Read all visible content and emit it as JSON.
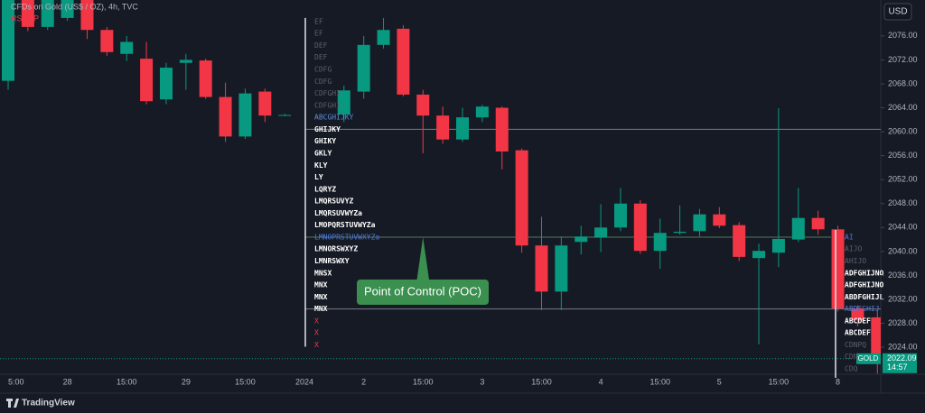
{
  "chart_data": {
    "type": "candlestick",
    "title": "CFDs on Gold (US$ / OZ), 4h, TVC",
    "subtitle": "RS: MP",
    "currency": "USD",
    "brand": "TradingView",
    "up_color": "#089981",
    "down_color": "#f23645",
    "categories": [
      "5:00",
      null,
      null,
      "28",
      null,
      null,
      "15:00",
      null,
      null,
      "29",
      null,
      null,
      "15:00",
      null,
      null,
      "2024",
      null,
      null,
      "2",
      null,
      null,
      "15:00",
      null,
      null,
      "3",
      null,
      null,
      "15:00",
      null,
      null,
      "4",
      null,
      null,
      "15:00",
      null,
      null,
      "5",
      null,
      null,
      "15:00",
      null,
      null,
      "8",
      null,
      null
    ],
    "open": [
      2068.5,
      2082,
      2077.5,
      2079,
      2082,
      2077,
      2073,
      2072.2,
      2065.4,
      2071.5,
      2071.9,
      2065.8,
      2059.2,
      2066.7,
      2062.8,
      null,
      null,
      2062.9,
      2066.7,
      2074.5,
      2077.2,
      2066.2,
      2062.7,
      2058.7,
      2062.4,
      2064,
      2056.9,
      2041,
      2033.3,
      2041.6,
      2042.3,
      2044,
      2048,
      2040.1,
      2043.1,
      2043.4,
      2046.2,
      2044.4,
      2038.9,
      2039.8,
      2042,
      2045.6,
      2043.7,
      2030.5,
      2029
    ],
    "high": [
      2082,
      2082,
      2082,
      2082,
      2082,
      2077.5,
      2076,
      2075,
      2071.5,
      2073,
      2072.2,
      2068.2,
      2067.2,
      2067.2,
      2063,
      null,
      null,
      2067.7,
      2076,
      2079,
      2077.8,
      2067,
      2064.2,
      2064,
      2064.5,
      2064.2,
      2057.2,
      2045.8,
      2042.5,
      2044.3,
      2047.9,
      2050.6,
      2048.6,
      2045.5,
      2047.7,
      2047.1,
      2047.4,
      2044.9,
      2041.3,
      2063.9,
      2050.6,
      2046.8,
      2044.3,
      2031,
      2030.2
    ],
    "low": [
      2067,
      2076.8,
      2077,
      2078.5,
      2075.5,
      2072.7,
      2071.8,
      2064.6,
      2064.6,
      2067,
      2065.5,
      2058.3,
      2058.8,
      2061.6,
      2062.6,
      null,
      null,
      2061.6,
      2065.5,
      2073.9,
      2065.9,
      2056.4,
      2058,
      2058.3,
      2061.6,
      2053.7,
      2039.8,
      2030.2,
      2030.2,
      2039.5,
      2039.9,
      2043.4,
      2039.6,
      2037.1,
      2042.8,
      2042.5,
      2043.9,
      2038.4,
      2024.5,
      2037.4,
      2041.6,
      2042.8,
      2030,
      2027.5,
      2019.6
    ],
    "close": [
      2082,
      2077.5,
      2082,
      2082,
      2077,
      2073.3,
      2075,
      2065.1,
      2070.7,
      2072,
      2065.8,
      2059.2,
      2066.4,
      2062.7,
      2062.8,
      null,
      null,
      2066.9,
      2074.5,
      2077,
      2066.2,
      2062.7,
      2058.7,
      2062.4,
      2064.2,
      2056.7,
      2041,
      2033.3,
      2041,
      2042.5,
      2044,
      2048,
      2040.1,
      2043.1,
      2043.3,
      2046.2,
      2044.3,
      2039.1,
      2040.1,
      2042.1,
      2045.6,
      2043.7,
      2030.5,
      2028.5,
      2022.09
    ],
    "ylim": [
      2019.5,
      2082
    ],
    "yticks": [
      {
        "value": 2024,
        "label": "2024.00"
      },
      {
        "value": 2028,
        "label": "2028.00"
      },
      {
        "value": 2032,
        "label": "2032.00"
      },
      {
        "value": 2036,
        "label": "2036.00"
      },
      {
        "value": 2040,
        "label": "2040.00"
      },
      {
        "value": 2044,
        "label": "2044.00"
      },
      {
        "value": 2048,
        "label": "2048.00"
      },
      {
        "value": 2052,
        "label": "2052.00"
      },
      {
        "value": 2056,
        "label": "2056.00"
      },
      {
        "value": 2060,
        "label": "2060.00"
      },
      {
        "value": 2064,
        "label": "2064.00"
      },
      {
        "value": 2068,
        "label": "2068.00"
      },
      {
        "value": 2072,
        "label": "2072.00"
      },
      {
        "value": 2076,
        "label": "2076.00"
      }
    ],
    "last_price": {
      "symbol": "GOLD",
      "value": 2022.09,
      "time": "14:57",
      "color": "#089981"
    },
    "levels": [
      {
        "value": 2060.4,
        "color": "#787b86"
      },
      {
        "value": 2042.4,
        "color": "#4e7a58"
      },
      {
        "value": 2030.4,
        "color": "#787b86"
      }
    ],
    "annotation": {
      "text": "Point of Control (POC)",
      "value": 2042.4,
      "color": "#3b8f4f"
    },
    "profiles": [
      {
        "rows": [
          {
            "price": 2078.4,
            "text": "EF",
            "color": "#5d606b"
          },
          {
            "price": 2076.4,
            "text": "EF",
            "color": "#5d606b"
          },
          {
            "price": 2074.4,
            "text": "DEF",
            "color": "#5d606b"
          },
          {
            "price": 2072.4,
            "text": "DEF",
            "color": "#5d606b"
          },
          {
            "price": 2070.4,
            "text": "CDFG",
            "color": "#5d606b"
          },
          {
            "price": 2068.4,
            "text": "CDFG",
            "color": "#5d606b"
          },
          {
            "price": 2066.4,
            "text": "CDFGHI",
            "color": "#5d606b"
          },
          {
            "price": 2064.4,
            "text": "CDFGHI",
            "color": "#5d606b"
          },
          {
            "price": 2062.4,
            "text": "ABCGHIJKY",
            "color": "#5b8fd6"
          },
          {
            "price": 2060.4,
            "text": "GHIJKY",
            "color": "#ffffff"
          },
          {
            "price": 2058.4,
            "text": "GHIKY",
            "color": "#ffffff"
          },
          {
            "price": 2056.4,
            "text": "GKLY",
            "color": "#ffffff"
          },
          {
            "price": 2054.4,
            "text": "KLY",
            "color": "#ffffff"
          },
          {
            "price": 2052.4,
            "text": "LY",
            "color": "#ffffff"
          },
          {
            "price": 2050.4,
            "text": "LQRYZ",
            "color": "#ffffff"
          },
          {
            "price": 2048.4,
            "text": "LMQRSUVYZ",
            "color": "#ffffff"
          },
          {
            "price": 2046.4,
            "text": "LMQRSUVWYZa",
            "color": "#ffffff"
          },
          {
            "price": 2044.4,
            "text": "LMOPQRSTUVWYZa",
            "color": "#ffffff"
          },
          {
            "price": 2042.4,
            "text": "LMNOPRSTUVWXYZa",
            "color": "#4f7bd9"
          },
          {
            "price": 2040.4,
            "text": "LMNORSWXYZ",
            "color": "#ffffff"
          },
          {
            "price": 2038.4,
            "text": "LMNRSWXY",
            "color": "#ffffff"
          },
          {
            "price": 2036.4,
            "text": "MNSX",
            "color": "#ffffff"
          },
          {
            "price": 2034.4,
            "text": "MNX",
            "color": "#ffffff"
          },
          {
            "price": 2032.4,
            "text": "MNX",
            "color": "#ffffff"
          },
          {
            "price": 2030.4,
            "text": "MNX",
            "color": "#ffffff"
          },
          {
            "price": 2028.4,
            "text": "X",
            "color": "#f23645"
          },
          {
            "price": 2026.4,
            "text": "X",
            "color": "#f23645"
          },
          {
            "price": 2024.4,
            "text": "X",
            "color": "#f23645"
          }
        ]
      },
      {
        "rows": [
          {
            "price": 2042.4,
            "text": "AI",
            "color": "#4f7bd9"
          },
          {
            "price": 2040.4,
            "text": "AIJO",
            "color": "#5d606b"
          },
          {
            "price": 2038.4,
            "text": "AHIJO",
            "color": "#5d606b"
          },
          {
            "price": 2036.4,
            "text": "ADFGHIJNO",
            "color": "#ffffff"
          },
          {
            "price": 2034.4,
            "text": "ADFGHIJNO",
            "color": "#ffffff"
          },
          {
            "price": 2032.4,
            "text": "ABDFGHIJL",
            "color": "#ffffff"
          },
          {
            "price": 2030.4,
            "text": "ABDFGHIJ",
            "color": "#4f7bd9"
          },
          {
            "price": 2028.4,
            "text": "ABCDEF",
            "color": "#ffffff"
          },
          {
            "price": 2026.4,
            "text": "ABCDEF",
            "color": "#ffffff"
          },
          {
            "price": 2024.4,
            "text": "CDNPQ",
            "color": "#5d606b"
          },
          {
            "price": 2022.4,
            "text": "CDN",
            "color": "#5d606b"
          },
          {
            "price": 2020.4,
            "text": "CDQ",
            "color": "#5d606b"
          }
        ]
      }
    ]
  }
}
